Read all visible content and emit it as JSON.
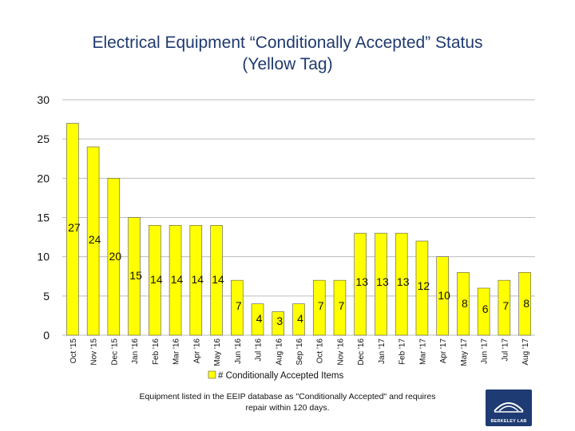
{
  "header": {
    "title_line1": "Electrical Equipment “Conditionally Accepted” Status",
    "title_line2": "(Yellow Tag)"
  },
  "footnote": {
    "line1": "Equipment listed in the EEIP database as \"Conditionally Accepted\" and requires",
    "line2": "repair within 120 days."
  },
  "logo": {
    "text": "BERKELEY LAB",
    "icon": "berkeley-lab-logo"
  },
  "colors": {
    "bar_fill": "#ffff00",
    "bar_stroke": "#555555",
    "grid": "#bdbdbd",
    "title": "#1f3a6e"
  },
  "chart_data": {
    "type": "bar",
    "title": "Electrical Equipment “Conditionally Accepted” Status (Yellow Tag)",
    "categories": [
      "Oct '15",
      "Nov '15",
      "Dec '15",
      "Jan '16",
      "Feb '16",
      "Mar '16",
      "Apr '16",
      "May '16",
      "Jun '16",
      "Jul '16",
      "Aug '16",
      "Sep '16",
      "Oct '16",
      "Nov '16",
      "Dec '16",
      "Jan '17",
      "Feb '17",
      "Mar '17",
      "Apr '17",
      "May '17",
      "Jun '17",
      "Jul '17",
      "Aug '17"
    ],
    "series": [
      {
        "name": "# Conditionally Accepted Items",
        "values": [
          27,
          24,
          20,
          15,
          14,
          14,
          14,
          14,
          7,
          4,
          3,
          4,
          7,
          7,
          13,
          13,
          13,
          12,
          10,
          8,
          6,
          7,
          8
        ]
      }
    ],
    "ylim": [
      0,
      30
    ],
    "yticks": [
      0,
      5,
      10,
      15,
      20,
      25,
      30
    ],
    "grid": true,
    "legend": "bottom"
  }
}
